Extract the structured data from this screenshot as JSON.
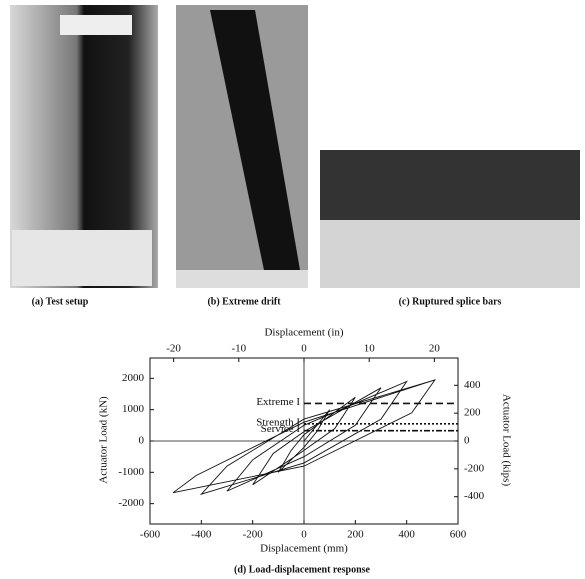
{
  "figures": [
    {
      "caption": "(a) Test setup"
    },
    {
      "caption": "(b) Extreme drift"
    },
    {
      "caption": "(c) Ruptured splice bars"
    }
  ],
  "chart_data": {
    "type": "line",
    "title": "(d) Load-displacement response",
    "x_label": "Displacement (mm)",
    "x2_label": "Displacement (in)",
    "y_label": "Actuator Load (kN)",
    "y2_label": "Actuator Load (kips)",
    "xlim": [
      -600,
      600
    ],
    "xticks": [
      -600,
      -400,
      -200,
      0,
      200,
      400,
      600
    ],
    "x2lim": [
      -23.62,
      23.62
    ],
    "x2ticks": [
      -20,
      -10,
      0,
      10,
      20
    ],
    "ylim": [
      -2650,
      2650
    ],
    "yticks": [
      -2000,
      -1000,
      0,
      1000,
      2000
    ],
    "y2lim": [
      -596,
      596
    ],
    "y2ticks": [
      -400,
      -200,
      0,
      200,
      400
    ],
    "color": "#111111",
    "x": [
      0,
      100,
      50,
      0,
      -100,
      -50,
      0,
      200,
      120,
      0,
      -200,
      -120,
      0,
      300,
      200,
      0,
      -300,
      -200,
      0,
      400,
      300,
      0,
      -400,
      -300,
      0,
      510,
      420,
      0,
      -510,
      -420,
      0,
      510
    ],
    "values": [
      0,
      1000,
      300,
      -200,
      -1000,
      -300,
      200,
      1400,
      400,
      -300,
      -1400,
      -400,
      300,
      1700,
      500,
      -500,
      -1600,
      -600,
      500,
      1900,
      700,
      -700,
      -1700,
      -800,
      700,
      1950,
      900,
      -800,
      -1650,
      -1100,
      600,
      1950
    ],
    "annotations": [
      {
        "text": "Extreme I",
        "value": 1200
      },
      {
        "text": "Strength I",
        "value": 550
      },
      {
        "text": "Service I",
        "value": 330
      }
    ]
  }
}
